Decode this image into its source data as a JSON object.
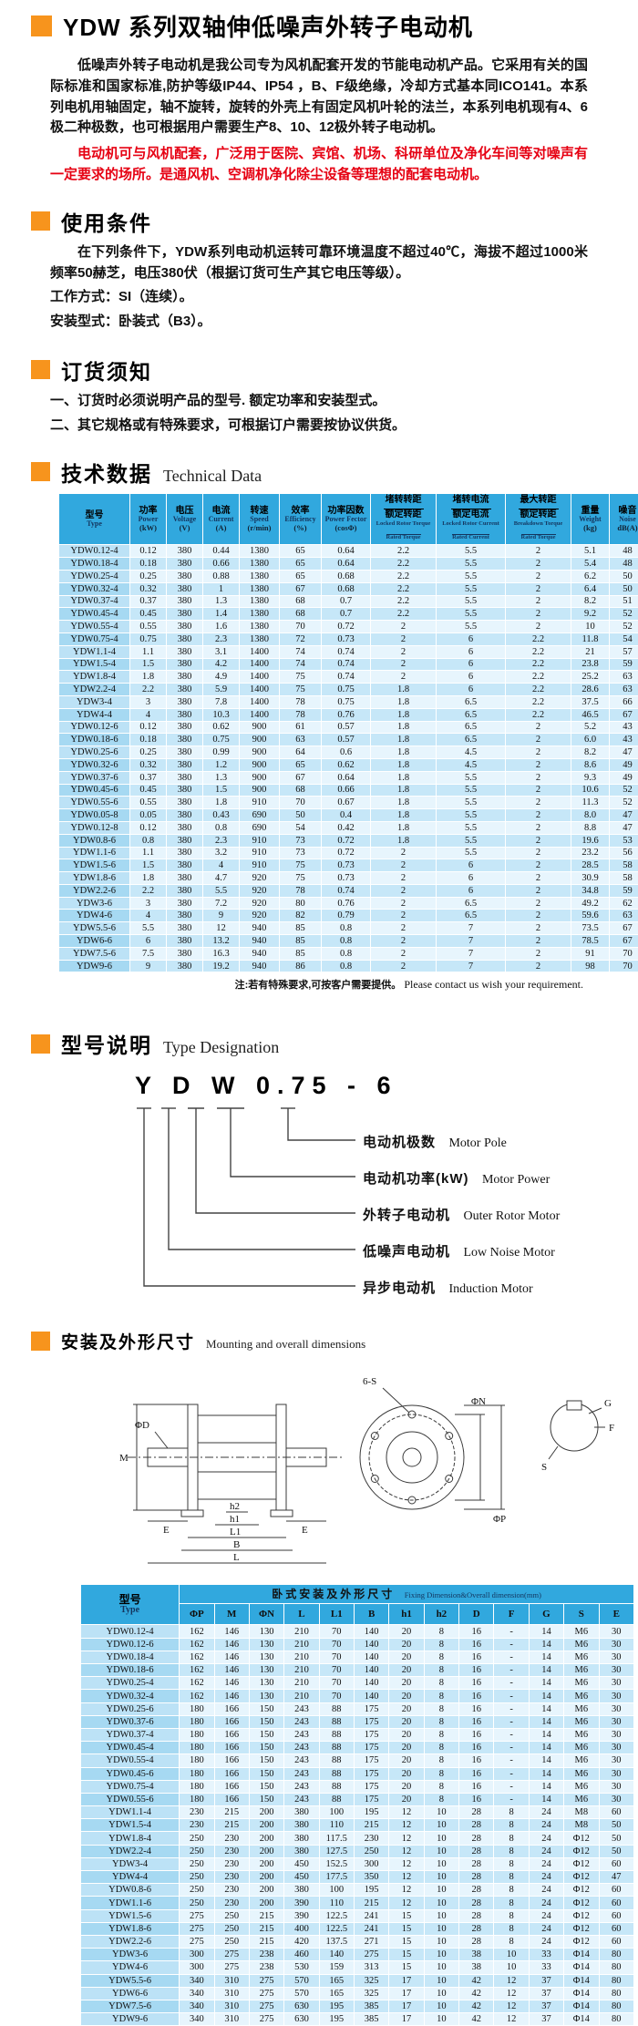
{
  "colors": {
    "accent_orange": "#F7941D",
    "red_text": "#E60012",
    "table_header_blue": "#31A8DE",
    "row_light": "#E7F5FD",
    "row_dark": "#C6E7F8"
  },
  "header": {
    "title": "YDW 系列双轴伸低噪声外转子电动机"
  },
  "intro": {
    "p1": "低噪声外转子电动机是我公司专为风机配套开发的节能电动机产品。它采用有关的国际标准和国家标准,防护等级IP44、IP54 ，B、F级绝缘，冷却方式基本同ICO141。本系列电机用轴固定，轴不旋转，旋转的外壳上有固定风机叶轮的法兰，本系列电机现有4、6极二种极数，也可根据用户需要生产8、10、12极外转子电动机。",
    "p2": "电动机可与风机配套，广泛用于医院、宾馆、机场、科研单位及净化车间等对噪声有一定要求的场所。是通风机、空调机净化除尘设备等理想的配套电动机。"
  },
  "usage": {
    "heading_zh": "使用条件",
    "line1": "在下列条件下，YDW系列电动机运转可靠环境温度不超过40℃，海拔不超过1000米频率50赫芝，电压380伏（根据订货可生产其它电压等级）。",
    "line2": "工作方式：SI（连续）。",
    "line3": "安装型式：卧装式（B3）。"
  },
  "ordering": {
    "heading_zh": "订货须知",
    "item1": "一、订货时必须说明产品的型号. 额定功率和安装型式。",
    "item2": "二、其它规格或有特殊要求，可根据订户需要按协议供货。"
  },
  "tech": {
    "heading_zh": "技术数据",
    "heading_en": "Technical Data",
    "note_zh": "注:若有特殊要求,可按客户需要提供。",
    "note_en": "Please contact us wish your requirement.",
    "columns": [
      {
        "zh": "型号",
        "en": "Type"
      },
      {
        "zh": "功率",
        "en": "Power",
        "unit": "(kW)"
      },
      {
        "zh": "电压",
        "en": "Voltage",
        "unit": "(V)"
      },
      {
        "zh": "电流",
        "en": "Current",
        "unit": "(A)"
      },
      {
        "zh": "转速",
        "en": "Speed",
        "unit": "(r/min)"
      },
      {
        "zh": "效率",
        "en": "Efficiency",
        "unit": "(%)"
      },
      {
        "zh": "功率因数",
        "en": "Power Fector",
        "unit": "(cosΦ)"
      },
      {
        "zh": "堵转转距",
        "zh2": "额定转距",
        "en": "Locked Rotor Torque",
        "en2": "Rated Torque"
      },
      {
        "zh": "堵转电流",
        "zh2": "额定电流",
        "en": "Locked Rotor Current",
        "en2": "Rated Current"
      },
      {
        "zh": "最大转距",
        "zh2": "额定转距",
        "en": "Breakdown Torque",
        "en2": "Rated Torque"
      },
      {
        "zh": "重量",
        "en": "Weight",
        "unit": "(kg)"
      },
      {
        "zh": "噪音",
        "en": "Noise",
        "unit": "dB(A)"
      }
    ],
    "rows": [
      [
        "YDW0.12-4",
        "0.12",
        "380",
        "0.44",
        "1380",
        "65",
        "0.64",
        "2.2",
        "5.5",
        "2",
        "5.1",
        "48"
      ],
      [
        "YDW0.18-4",
        "0.18",
        "380",
        "0.66",
        "1380",
        "65",
        "0.64",
        "2.2",
        "5.5",
        "2",
        "5.4",
        "48"
      ],
      [
        "YDW0.25-4",
        "0.25",
        "380",
        "0.88",
        "1380",
        "65",
        "0.68",
        "2.2",
        "5.5",
        "2",
        "6.2",
        "50"
      ],
      [
        "YDW0.32-4",
        "0.32",
        "380",
        "1",
        "1380",
        "67",
        "0.68",
        "2.2",
        "5.5",
        "2",
        "6.4",
        "50"
      ],
      [
        "YDW0.37-4",
        "0.37",
        "380",
        "1.3",
        "1380",
        "68",
        "0.7",
        "2.2",
        "5.5",
        "2",
        "8.2",
        "51"
      ],
      [
        "YDW0.45-4",
        "0.45",
        "380",
        "1.4",
        "1380",
        "68",
        "0.7",
        "2.2",
        "5.5",
        "2",
        "9.2",
        "52"
      ],
      [
        "YDW0.55-4",
        "0.55",
        "380",
        "1.6",
        "1380",
        "70",
        "0.72",
        "2",
        "5.5",
        "2",
        "10",
        "52"
      ],
      [
        "YDW0.75-4",
        "0.75",
        "380",
        "2.3",
        "1380",
        "72",
        "0.73",
        "2",
        "6",
        "2.2",
        "11.8",
        "54"
      ],
      [
        "YDW1.1-4",
        "1.1",
        "380",
        "3.1",
        "1400",
        "74",
        "0.74",
        "2",
        "6",
        "2.2",
        "21",
        "57"
      ],
      [
        "YDW1.5-4",
        "1.5",
        "380",
        "4.2",
        "1400",
        "74",
        "0.74",
        "2",
        "6",
        "2.2",
        "23.8",
        "59"
      ],
      [
        "YDW1.8-4",
        "1.8",
        "380",
        "4.9",
        "1400",
        "75",
        "0.74",
        "2",
        "6",
        "2.2",
        "25.2",
        "63"
      ],
      [
        "YDW2.2-4",
        "2.2",
        "380",
        "5.9",
        "1400",
        "75",
        "0.75",
        "1.8",
        "6",
        "2.2",
        "28.6",
        "63"
      ],
      [
        "YDW3-4",
        "3",
        "380",
        "7.8",
        "1400",
        "78",
        "0.75",
        "1.8",
        "6.5",
        "2.2",
        "37.5",
        "66"
      ],
      [
        "YDW4-4",
        "4",
        "380",
        "10.3",
        "1400",
        "78",
        "0.76",
        "1.8",
        "6.5",
        "2.2",
        "46.5",
        "67"
      ],
      [
        "YDW0.12-6",
        "0.12",
        "380",
        "0.62",
        "900",
        "61",
        "0.57",
        "1.8",
        "6.5",
        "2",
        "5.2",
        "43"
      ],
      [
        "YDW0.18-6",
        "0.18",
        "380",
        "0.75",
        "900",
        "63",
        "0.57",
        "1.8",
        "6.5",
        "2",
        "6.0",
        "43"
      ],
      [
        "YDW0.25-6",
        "0.25",
        "380",
        "0.99",
        "900",
        "64",
        "0.6",
        "1.8",
        "4.5",
        "2",
        "8.2",
        "47"
      ],
      [
        "YDW0.32-6",
        "0.32",
        "380",
        "1.2",
        "900",
        "65",
        "0.62",
        "1.8",
        "4.5",
        "2",
        "8.6",
        "49"
      ],
      [
        "YDW0.37-6",
        "0.37",
        "380",
        "1.3",
        "900",
        "67",
        "0.64",
        "1.8",
        "5.5",
        "2",
        "9.3",
        "49"
      ],
      [
        "YDW0.45-6",
        "0.45",
        "380",
        "1.5",
        "900",
        "68",
        "0.66",
        "1.8",
        "5.5",
        "2",
        "10.6",
        "52"
      ],
      [
        "YDW0.55-6",
        "0.55",
        "380",
        "1.8",
        "910",
        "70",
        "0.67",
        "1.8",
        "5.5",
        "2",
        "11.3",
        "52"
      ],
      [
        "YDW0.05-8",
        "0.05",
        "380",
        "0.43",
        "690",
        "50",
        "0.4",
        "1.8",
        "5.5",
        "2",
        "8.0",
        "47"
      ],
      [
        "YDW0.12-8",
        "0.12",
        "380",
        "0.8",
        "690",
        "54",
        "0.42",
        "1.8",
        "5.5",
        "2",
        "8.8",
        "47"
      ],
      [
        "YDW0.8-6",
        "0.8",
        "380",
        "2.3",
        "910",
        "73",
        "0.72",
        "1.8",
        "5.5",
        "2",
        "19.6",
        "53"
      ],
      [
        "YDW1.1-6",
        "1.1",
        "380",
        "3.2",
        "910",
        "73",
        "0.72",
        "2",
        "5.5",
        "2",
        "23.2",
        "56"
      ],
      [
        "YDW1.5-6",
        "1.5",
        "380",
        "4",
        "910",
        "75",
        "0.73",
        "2",
        "6",
        "2",
        "28.5",
        "58"
      ],
      [
        "YDW1.8-6",
        "1.8",
        "380",
        "4.7",
        "920",
        "75",
        "0.73",
        "2",
        "6",
        "2",
        "30.9",
        "58"
      ],
      [
        "YDW2.2-6",
        "2.2",
        "380",
        "5.5",
        "920",
        "78",
        "0.74",
        "2",
        "6",
        "2",
        "34.8",
        "59"
      ],
      [
        "YDW3-6",
        "3",
        "380",
        "7.2",
        "920",
        "80",
        "0.76",
        "2",
        "6.5",
        "2",
        "49.2",
        "62"
      ],
      [
        "YDW4-6",
        "4",
        "380",
        "9",
        "920",
        "82",
        "0.79",
        "2",
        "6.5",
        "2",
        "59.6",
        "63"
      ],
      [
        "YDW5.5-6",
        "5.5",
        "380",
        "12",
        "940",
        "85",
        "0.8",
        "2",
        "7",
        "2",
        "73.5",
        "67"
      ],
      [
        "YDW6-6",
        "6",
        "380",
        "13.2",
        "940",
        "85",
        "0.8",
        "2",
        "7",
        "2",
        "78.5",
        "67"
      ],
      [
        "YDW7.5-6",
        "7.5",
        "380",
        "16.3",
        "940",
        "85",
        "0.8",
        "2",
        "7",
        "2",
        "91",
        "70"
      ],
      [
        "YDW9-6",
        "9",
        "380",
        "19.2",
        "940",
        "86",
        "0.8",
        "2",
        "7",
        "2",
        "98",
        "70"
      ]
    ]
  },
  "type_designation": {
    "heading_zh": "型号说明",
    "heading_en": "Type Designation",
    "code": "Y D W 0.75 - 6",
    "labels": [
      {
        "zh": "电动机极数",
        "en": "Motor Pole"
      },
      {
        "zh": "电动机功率(kW)",
        "en": "Motor  Power"
      },
      {
        "zh": "外转子电动机",
        "en": "Outer Rotor Motor"
      },
      {
        "zh": "低噪声电动机",
        "en": "Low Noise Motor"
      },
      {
        "zh": "异步电动机",
        "en": "Induction Motor"
      }
    ]
  },
  "mounting": {
    "heading_zh": "安装及外形尺寸",
    "heading_en": "Mounting and overall dimensions",
    "drawing_labels": {
      "m": "M",
      "phi_d": "ΦD",
      "e_left": "E",
      "e_right": "E",
      "h2": "h2",
      "h1": "h1",
      "l1": "L1",
      "b": "B",
      "l": "L",
      "six_s": "6-S",
      "phi_n": "ΦN",
      "phi_p": "ΦP",
      "g": "G",
      "f": "F",
      "s": "S"
    }
  },
  "dim_table": {
    "type_zh": "型号",
    "type_en": "Type",
    "group_zh": "卧式安装及外形尺寸",
    "group_en": "Fixing Dimension&Overall dimension(mm)",
    "columns": [
      "ΦP",
      "M",
      "ΦN",
      "L",
      "L1",
      "B",
      "h1",
      "h2",
      "D",
      "F",
      "G",
      "S",
      "E"
    ],
    "rows": [
      [
        "YDW0.12-4",
        "162",
        "146",
        "130",
        "210",
        "70",
        "140",
        "20",
        "8",
        "16",
        "-",
        "14",
        "M6",
        "30"
      ],
      [
        "YDW0.12-6",
        "162",
        "146",
        "130",
        "210",
        "70",
        "140",
        "20",
        "8",
        "16",
        "-",
        "14",
        "M6",
        "30"
      ],
      [
        "YDW0.18-4",
        "162",
        "146",
        "130",
        "210",
        "70",
        "140",
        "20",
        "8",
        "16",
        "-",
        "14",
        "M6",
        "30"
      ],
      [
        "YDW0.18-6",
        "162",
        "146",
        "130",
        "210",
        "70",
        "140",
        "20",
        "8",
        "16",
        "-",
        "14",
        "M6",
        "30"
      ],
      [
        "YDW0.25-4",
        "162",
        "146",
        "130",
        "210",
        "70",
        "140",
        "20",
        "8",
        "16",
        "-",
        "14",
        "M6",
        "30"
      ],
      [
        "YDW0.32-4",
        "162",
        "146",
        "130",
        "210",
        "70",
        "140",
        "20",
        "8",
        "16",
        "-",
        "14",
        "M6",
        "30"
      ],
      [
        "YDW0.25-6",
        "180",
        "166",
        "150",
        "243",
        "88",
        "175",
        "20",
        "8",
        "16",
        "-",
        "14",
        "M6",
        "30"
      ],
      [
        "YDW0.37-6",
        "180",
        "166",
        "150",
        "243",
        "88",
        "175",
        "20",
        "8",
        "16",
        "-",
        "14",
        "M6",
        "30"
      ],
      [
        "YDW0.37-4",
        "180",
        "166",
        "150",
        "243",
        "88",
        "175",
        "20",
        "8",
        "16",
        "-",
        "14",
        "M6",
        "30"
      ],
      [
        "YDW0.45-4",
        "180",
        "166",
        "150",
        "243",
        "88",
        "175",
        "20",
        "8",
        "16",
        "-",
        "14",
        "M6",
        "30"
      ],
      [
        "YDW0.55-4",
        "180",
        "166",
        "150",
        "243",
        "88",
        "175",
        "20",
        "8",
        "16",
        "-",
        "14",
        "M6",
        "30"
      ],
      [
        "YDW0.45-6",
        "180",
        "166",
        "150",
        "243",
        "88",
        "175",
        "20",
        "8",
        "16",
        "-",
        "14",
        "M6",
        "30"
      ],
      [
        "YDW0.75-4",
        "180",
        "166",
        "150",
        "243",
        "88",
        "175",
        "20",
        "8",
        "16",
        "-",
        "14",
        "M6",
        "30"
      ],
      [
        "YDW0.55-6",
        "180",
        "166",
        "150",
        "243",
        "88",
        "175",
        "20",
        "8",
        "16",
        "-",
        "14",
        "M6",
        "30"
      ],
      [
        "YDW1.1-4",
        "230",
        "215",
        "200",
        "380",
        "100",
        "195",
        "12",
        "10",
        "28",
        "8",
        "24",
        "M8",
        "60"
      ],
      [
        "YDW1.5-4",
        "230",
        "215",
        "200",
        "380",
        "110",
        "215",
        "12",
        "10",
        "28",
        "8",
        "24",
        "M8",
        "50"
      ],
      [
        "YDW1.8-4",
        "250",
        "230",
        "200",
        "380",
        "117.5",
        "230",
        "12",
        "10",
        "28",
        "8",
        "24",
        "Φ12",
        "50"
      ],
      [
        "YDW2.2-4",
        "250",
        "230",
        "200",
        "380",
        "127.5",
        "250",
        "12",
        "10",
        "28",
        "8",
        "24",
        "Φ12",
        "50"
      ],
      [
        "YDW3-4",
        "250",
        "230",
        "200",
        "450",
        "152.5",
        "300",
        "12",
        "10",
        "28",
        "8",
        "24",
        "Φ12",
        "60"
      ],
      [
        "YDW4-4",
        "250",
        "230",
        "200",
        "450",
        "177.5",
        "350",
        "12",
        "10",
        "28",
        "8",
        "24",
        "Φ12",
        "47"
      ],
      [
        "YDW0.8-6",
        "250",
        "230",
        "200",
        "380",
        "100",
        "195",
        "12",
        "10",
        "28",
        "8",
        "24",
        "Φ12",
        "60"
      ],
      [
        "YDW1.1-6",
        "250",
        "230",
        "200",
        "390",
        "110",
        "215",
        "12",
        "10",
        "28",
        "8",
        "24",
        "Φ12",
        "60"
      ],
      [
        "YDW1.5-6",
        "275",
        "250",
        "215",
        "390",
        "122.5",
        "241",
        "15",
        "10",
        "28",
        "8",
        "24",
        "Φ12",
        "60"
      ],
      [
        "YDW1.8-6",
        "275",
        "250",
        "215",
        "400",
        "122.5",
        "241",
        "15",
        "10",
        "28",
        "8",
        "24",
        "Φ12",
        "60"
      ],
      [
        "YDW2.2-6",
        "275",
        "250",
        "215",
        "420",
        "137.5",
        "271",
        "15",
        "10",
        "28",
        "8",
        "24",
        "Φ12",
        "60"
      ],
      [
        "YDW3-6",
        "300",
        "275",
        "238",
        "460",
        "140",
        "275",
        "15",
        "10",
        "38",
        "10",
        "33",
        "Φ14",
        "80"
      ],
      [
        "YDW4-6",
        "300",
        "275",
        "238",
        "530",
        "159",
        "313",
        "15",
        "10",
        "38",
        "10",
        "33",
        "Φ14",
        "80"
      ],
      [
        "YDW5.5-6",
        "340",
        "310",
        "275",
        "570",
        "165",
        "325",
        "17",
        "10",
        "42",
        "12",
        "37",
        "Φ14",
        "80"
      ],
      [
        "YDW6-6",
        "340",
        "310",
        "275",
        "570",
        "165",
        "325",
        "17",
        "10",
        "42",
        "12",
        "37",
        "Φ14",
        "80"
      ],
      [
        "YDW7.5-6",
        "340",
        "310",
        "275",
        "630",
        "195",
        "385",
        "17",
        "10",
        "42",
        "12",
        "37",
        "Φ14",
        "80"
      ],
      [
        "YDW9-6",
        "340",
        "310",
        "275",
        "630",
        "195",
        "385",
        "17",
        "10",
        "42",
        "12",
        "37",
        "Φ14",
        "80"
      ]
    ]
  }
}
